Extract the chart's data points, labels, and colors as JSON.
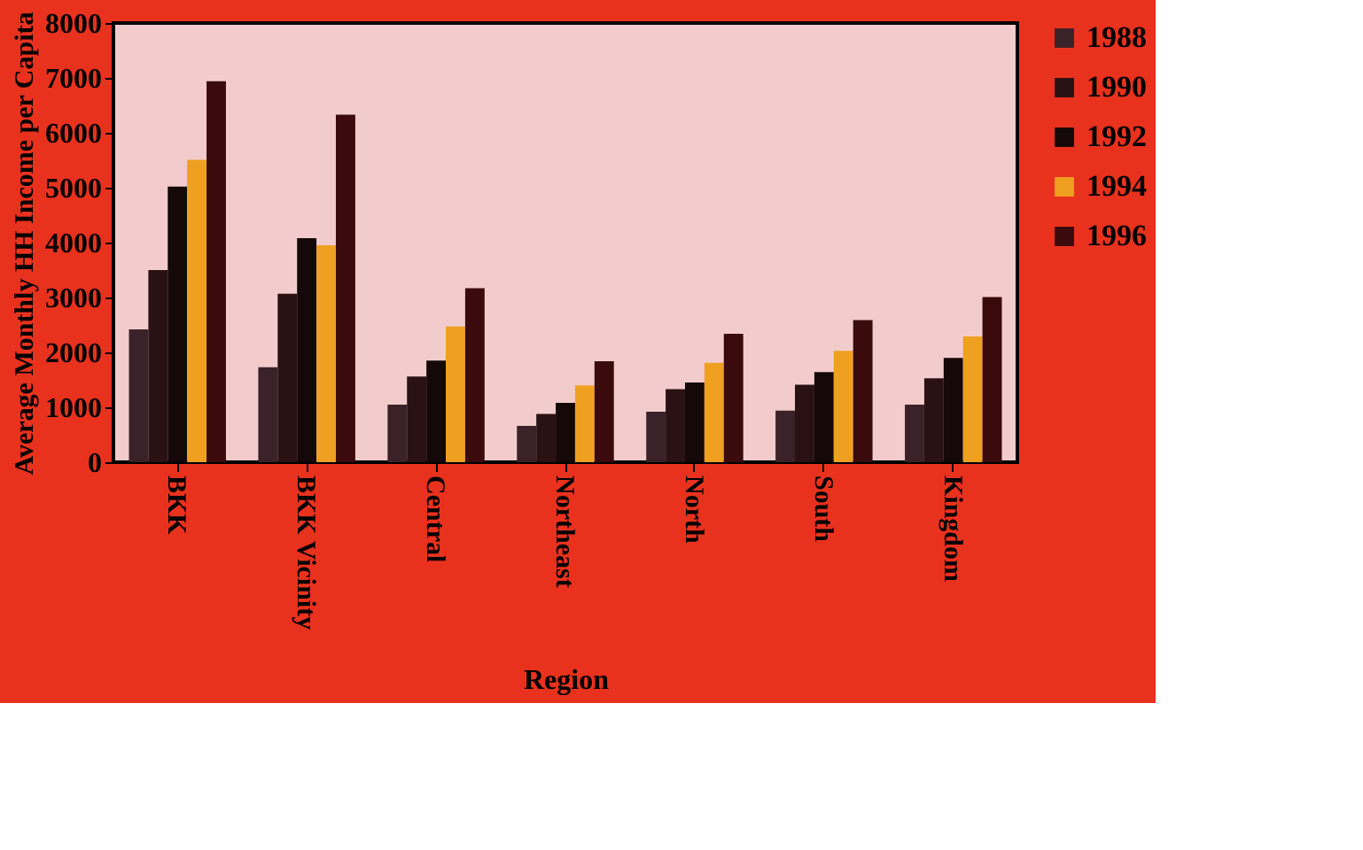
{
  "chart_data": {
    "type": "bar",
    "xlabel": "Region",
    "ylabel": "Average Monthly HH Income per Capita",
    "categories": [
      "BKK",
      "BKK Vicinity",
      "Central",
      "Northeast",
      "North",
      "South",
      "Kingdom"
    ],
    "series": [
      {
        "name": "1988",
        "color": "#3a2228",
        "values": [
          2420,
          1730,
          1050,
          660,
          920,
          940,
          1050
        ]
      },
      {
        "name": "1990",
        "color": "#2a1214",
        "values": [
          3500,
          3070,
          1560,
          880,
          1330,
          1410,
          1530
        ]
      },
      {
        "name": "1992",
        "color": "#150808",
        "values": [
          5020,
          4080,
          1850,
          1080,
          1450,
          1640,
          1900
        ]
      },
      {
        "name": "1994",
        "color": "#f0a020",
        "values": [
          5510,
          3950,
          2470,
          1400,
          1810,
          2030,
          2290
        ]
      },
      {
        "name": "1996",
        "color": "#3a0a0c",
        "values": [
          6940,
          6330,
          3170,
          1840,
          2340,
          2590,
          3010
        ]
      }
    ],
    "ylim": [
      0,
      8000
    ],
    "yticks": [
      0,
      1000,
      2000,
      3000,
      4000,
      5000,
      6000,
      7000,
      8000
    ],
    "grid": false,
    "legend": "right"
  }
}
